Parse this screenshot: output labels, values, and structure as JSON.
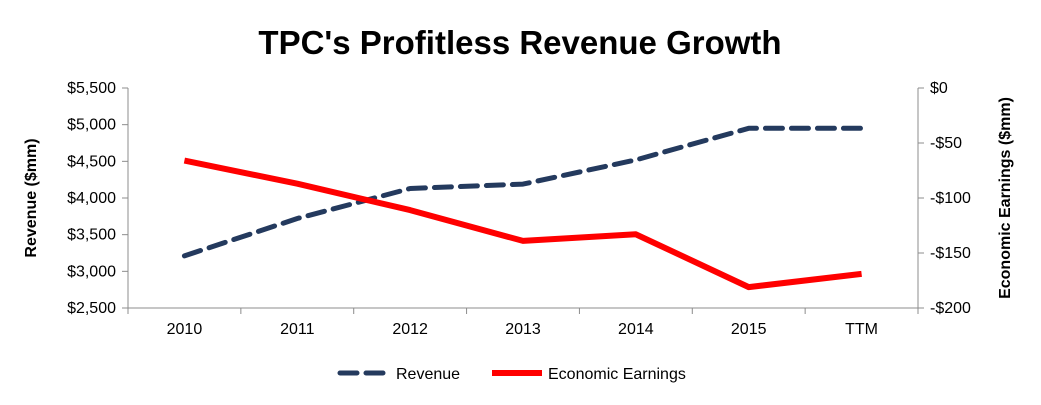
{
  "chart_data": {
    "type": "line",
    "title": "TPC's Profitless Revenue Growth",
    "categories": [
      "2010",
      "2011",
      "2012",
      "2013",
      "2014",
      "2015",
      "TTM"
    ],
    "y_left": {
      "label": "Revenue ($mm)",
      "range": [
        2500,
        5500
      ],
      "ticks": [
        2500,
        3000,
        3500,
        4000,
        4500,
        5000,
        5500
      ],
      "tick_labels": [
        "$2,500",
        "$3,000",
        "$3,500",
        "$4,000",
        "$4,500",
        "$5,000",
        "$5,500"
      ]
    },
    "y_right": {
      "label": "Economic Earnings ($mm)",
      "range": [
        -200,
        0
      ],
      "ticks": [
        -200,
        -150,
        -100,
        -50,
        0
      ],
      "tick_labels": [
        "-$200",
        "-$150",
        "-$100",
        "-$50",
        "$0"
      ]
    },
    "series": [
      {
        "name": "Revenue",
        "axis": "left",
        "style": "dashed",
        "color": "#243a5e",
        "values": [
          3210,
          3720,
          4130,
          4190,
          4520,
          4950,
          4950
        ]
      },
      {
        "name": "Economic Earnings",
        "axis": "right",
        "style": "solid",
        "color": "#ff0000",
        "values": [
          -66,
          -87,
          -111,
          -139,
          -133,
          -181,
          -169
        ]
      }
    ],
    "legend_position": "bottom",
    "grid": false
  }
}
